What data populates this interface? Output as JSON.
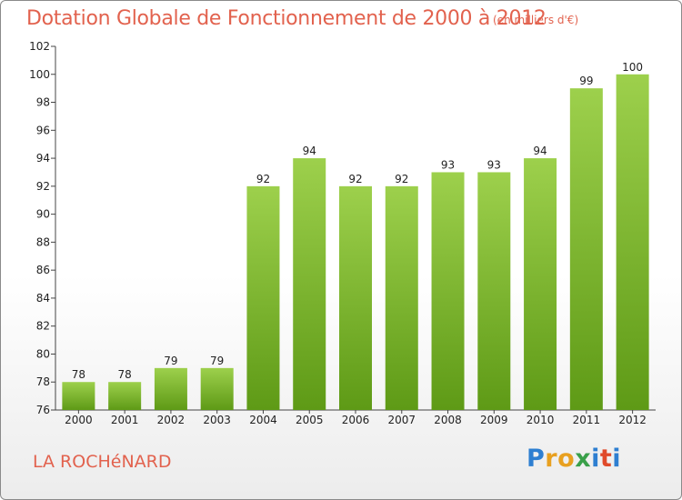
{
  "header": {
    "title": "Dotation Globale de Fonctionnement de 2000 à 2012",
    "subtitle": "(en milliers d'€)"
  },
  "footer": {
    "commune": "LA ROCHéNARD",
    "logo_letters": [
      "P",
      "r",
      "o",
      "x",
      "i",
      "t",
      "i"
    ]
  },
  "colors": {
    "title": "#e2624e",
    "bar_top": "#9dd04c",
    "bar_bottom": "#5e9a16",
    "logo": [
      "#2e7fd1",
      "#e8a020",
      "#e8a020",
      "#3aa04a",
      "#2e7fd1",
      "#e04a2a",
      "#2e7fd1"
    ]
  },
  "chart_data": {
    "type": "bar",
    "title": "Dotation Globale de Fonctionnement de 2000 à 2012",
    "subtitle": "(en milliers d'€)",
    "xlabel": "",
    "ylabel": "",
    "categories": [
      "2000",
      "2001",
      "2002",
      "2003",
      "2004",
      "2005",
      "2006",
      "2007",
      "2008",
      "2009",
      "2010",
      "2011",
      "2012"
    ],
    "values": [
      78,
      78,
      79,
      79,
      92,
      94,
      92,
      92,
      93,
      93,
      94,
      99,
      100
    ],
    "ylim": [
      76,
      102
    ],
    "yticks": [
      76,
      78,
      80,
      82,
      84,
      86,
      88,
      90,
      92,
      94,
      96,
      98,
      100,
      102
    ],
    "grid": false,
    "legend": "none"
  }
}
